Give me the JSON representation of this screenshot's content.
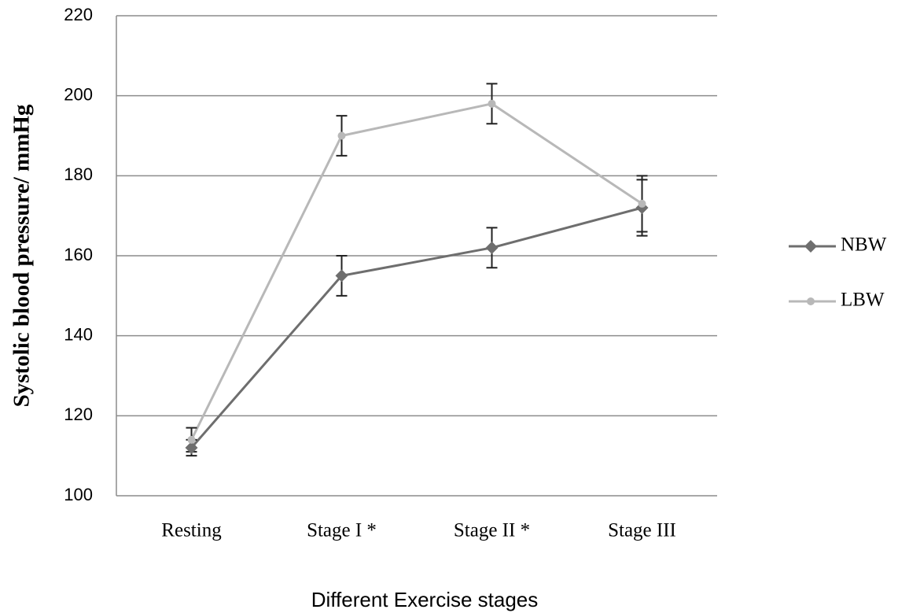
{
  "chart_data": {
    "type": "line",
    "x_label": "Different Exercise stages",
    "y_label": "Systolic blood pressure/ mmHg",
    "categories": [
      "Resting",
      "Stage I *",
      "Stage II *",
      "Stage III"
    ],
    "ylim": [
      100,
      220
    ],
    "yticks": [
      100,
      120,
      140,
      160,
      180,
      200,
      220
    ],
    "grid": true,
    "legend": "right",
    "series": [
      {
        "name": "NBW",
        "color": "#6e6e6e",
        "marker": "diamond",
        "values": [
          112,
          155,
          162,
          172
        ],
        "errors": [
          2,
          5,
          5,
          7
        ]
      },
      {
        "name": "LBW",
        "color": "#b8b8b8",
        "marker": "circle",
        "values": [
          114,
          190,
          198,
          173
        ],
        "errors": [
          3,
          5,
          5,
          7
        ]
      }
    ]
  }
}
